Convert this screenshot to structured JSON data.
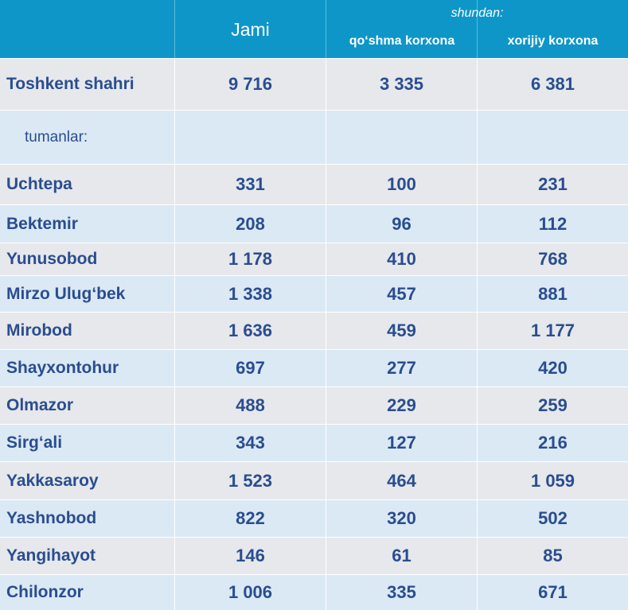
{
  "header": {
    "jami": "Jami",
    "shundan": "shundan:",
    "col2": "qo‘shma korxona",
    "col3": "xorijiy korxona"
  },
  "rows": [
    {
      "name": "Toshkent shahri",
      "jami": "9 716",
      "qoshma": "3 335",
      "xorijiy": "6 381"
    },
    {
      "name": "tumanlar:",
      "jami": "",
      "qoshma": "",
      "xorijiy": ""
    },
    {
      "name": "Uchtepa",
      "jami": "331",
      "qoshma": "100",
      "xorijiy": "231"
    },
    {
      "name": "Bektemir",
      "jami": "208",
      "qoshma": "96",
      "xorijiy": "112"
    },
    {
      "name": "Yunusobod",
      "jami": "1 178",
      "qoshma": "410",
      "xorijiy": "768"
    },
    {
      "name": "Mirzo Ulug‘bek",
      "jami": "1 338",
      "qoshma": "457",
      "xorijiy": "881"
    },
    {
      "name": "Mirobod",
      "jami": "1 636",
      "qoshma": "459",
      "xorijiy": "1 177"
    },
    {
      "name": "Shayxontohur",
      "jami": "697",
      "qoshma": "277",
      "xorijiy": "420"
    },
    {
      "name": "Olmazor",
      "jami": "488",
      "qoshma": "229",
      "xorijiy": "259"
    },
    {
      "name": "Sirg‘ali",
      "jami": "343",
      "qoshma": "127",
      "xorijiy": "216"
    },
    {
      "name": "Yakkasaroy",
      "jami": "1 523",
      "qoshma": "464",
      "xorijiy": "1 059"
    },
    {
      "name": "Yashnobod",
      "jami": "822",
      "qoshma": "320",
      "xorijiy": "502"
    },
    {
      "name": "Yangihayot",
      "jami": "146",
      "qoshma": "61",
      "xorijiy": "85"
    },
    {
      "name": "Chilonzor",
      "jami": "1 006",
      "qoshma": "335",
      "xorijiy": "671"
    }
  ]
}
